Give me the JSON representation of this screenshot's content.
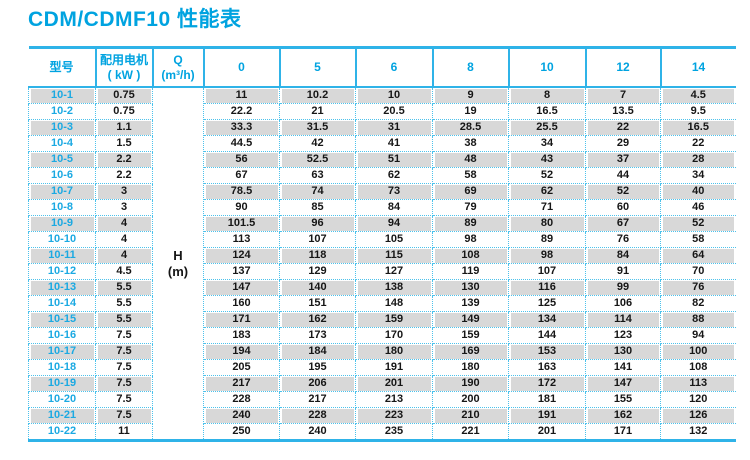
{
  "title": "CDM/CDMF10 性能表",
  "table": {
    "headers": {
      "model": "型号",
      "motor_line1": "配用电机",
      "motor_line2": "( kW )",
      "q_line1": "Q",
      "q_line2": "(m³/h)",
      "flow_columns": [
        "0",
        "5",
        "6",
        "8",
        "10",
        "12",
        "14"
      ]
    },
    "h_label_line1": "H",
    "h_label_line2": "(m)",
    "rows": [
      {
        "model": "10-1",
        "kw": "0.75",
        "values": [
          "11",
          "10.2",
          "10",
          "9",
          "8",
          "7",
          "4.5"
        ]
      },
      {
        "model": "10-2",
        "kw": "0.75",
        "values": [
          "22.2",
          "21",
          "20.5",
          "19",
          "16.5",
          "13.5",
          "9.5"
        ]
      },
      {
        "model": "10-3",
        "kw": "1.1",
        "values": [
          "33.3",
          "31.5",
          "31",
          "28.5",
          "25.5",
          "22",
          "16.5"
        ]
      },
      {
        "model": "10-4",
        "kw": "1.5",
        "values": [
          "44.5",
          "42",
          "41",
          "38",
          "34",
          "29",
          "22"
        ]
      },
      {
        "model": "10-5",
        "kw": "2.2",
        "values": [
          "56",
          "52.5",
          "51",
          "48",
          "43",
          "37",
          "28"
        ]
      },
      {
        "model": "10-6",
        "kw": "2.2",
        "values": [
          "67",
          "63",
          "62",
          "58",
          "52",
          "44",
          "34"
        ]
      },
      {
        "model": "10-7",
        "kw": "3",
        "values": [
          "78.5",
          "74",
          "73",
          "69",
          "62",
          "52",
          "40"
        ]
      },
      {
        "model": "10-8",
        "kw": "3",
        "values": [
          "90",
          "85",
          "84",
          "79",
          "71",
          "60",
          "46"
        ]
      },
      {
        "model": "10-9",
        "kw": "4",
        "values": [
          "101.5",
          "96",
          "94",
          "89",
          "80",
          "67",
          "52"
        ]
      },
      {
        "model": "10-10",
        "kw": "4",
        "values": [
          "113",
          "107",
          "105",
          "98",
          "89",
          "76",
          "58"
        ]
      },
      {
        "model": "10-11",
        "kw": "4",
        "values": [
          "124",
          "118",
          "115",
          "108",
          "98",
          "84",
          "64"
        ]
      },
      {
        "model": "10-12",
        "kw": "4.5",
        "values": [
          "137",
          "129",
          "127",
          "119",
          "107",
          "91",
          "70"
        ]
      },
      {
        "model": "10-13",
        "kw": "5.5",
        "values": [
          "147",
          "140",
          "138",
          "130",
          "116",
          "99",
          "76"
        ]
      },
      {
        "model": "10-14",
        "kw": "5.5",
        "values": [
          "160",
          "151",
          "148",
          "139",
          "125",
          "106",
          "82"
        ]
      },
      {
        "model": "10-15",
        "kw": "5.5",
        "values": [
          "171",
          "162",
          "159",
          "149",
          "134",
          "114",
          "88"
        ]
      },
      {
        "model": "10-16",
        "kw": "7.5",
        "values": [
          "183",
          "173",
          "170",
          "159",
          "144",
          "123",
          "94"
        ]
      },
      {
        "model": "10-17",
        "kw": "7.5",
        "values": [
          "194",
          "184",
          "180",
          "169",
          "153",
          "130",
          "100"
        ]
      },
      {
        "model": "10-18",
        "kw": "7.5",
        "values": [
          "205",
          "195",
          "191",
          "180",
          "163",
          "141",
          "108"
        ]
      },
      {
        "model": "10-19",
        "kw": "7.5",
        "values": [
          "217",
          "206",
          "201",
          "190",
          "172",
          "147",
          "113"
        ]
      },
      {
        "model": "10-20",
        "kw": "7.5",
        "values": [
          "228",
          "217",
          "213",
          "200",
          "181",
          "155",
          "120"
        ]
      },
      {
        "model": "10-21",
        "kw": "7.5",
        "values": [
          "240",
          "228",
          "223",
          "210",
          "191",
          "162",
          "126"
        ]
      },
      {
        "model": "10-22",
        "kw": "11",
        "values": [
          "250",
          "240",
          "235",
          "221",
          "201",
          "171",
          "132"
        ]
      }
    ]
  },
  "colors": {
    "accent_cyan": "#00a3e0",
    "border_solid": "#2fb3e8",
    "border_dotted": "#4cc2ec",
    "row_shade": "#d8d8d8",
    "text_dark": "#161616"
  }
}
